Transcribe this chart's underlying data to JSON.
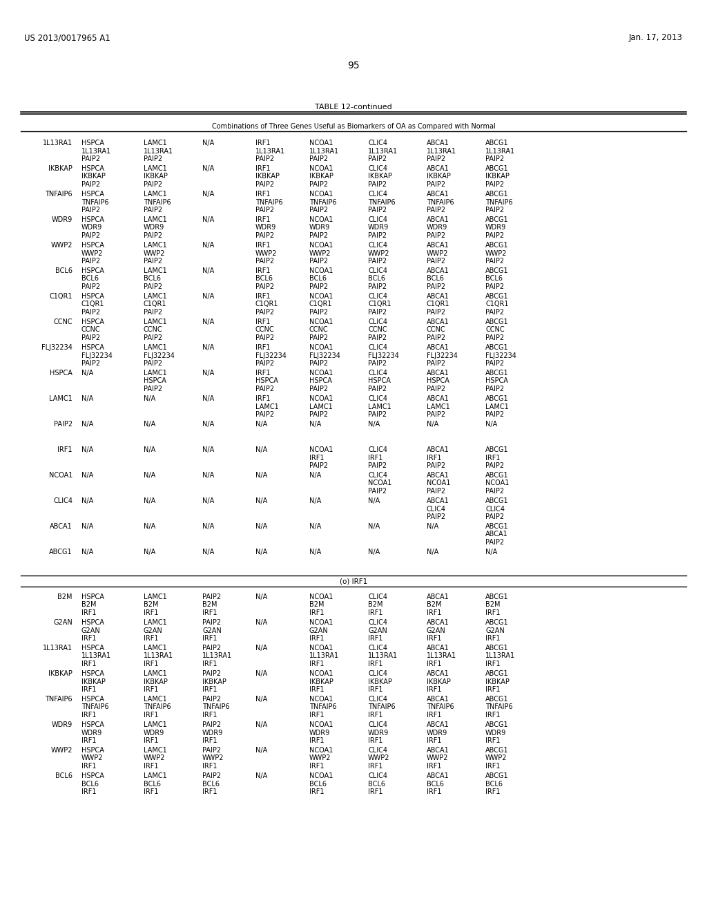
{
  "header_left": "US 2013/0017965 A1",
  "header_right": "Jan. 17, 2013",
  "page_number": "95",
  "table_title": "TABLE 12-continued",
  "subtitle": "Combinations of Three Genes Useful as Biomarkers of OA as Compared with Normal",
  "section_label_a": "(o) IRF1",
  "rows_section_a": [
    {
      "label": "1L13RA1",
      "cols": [
        "HSPCA",
        "LAMC1",
        "N/A",
        "IRF1",
        "NCOA1",
        "CLIC4",
        "ABCA1",
        "ABCG1"
      ],
      "sub1": [
        "1L13RA1",
        "1L13RA1",
        "",
        "1L13RA1",
        "1L13RA1",
        "1L13RA1",
        "1L13RA1",
        "1L13RA1"
      ],
      "sub2": [
        "PAIP2",
        "PAIP2",
        "",
        "PAIP2",
        "PAIP2",
        "PAIP2",
        "PAIP2",
        "PAIP2"
      ]
    },
    {
      "label": "IKBKAP",
      "cols": [
        "HSPCA",
        "LAMC1",
        "N/A",
        "IRF1",
        "NCOA1",
        "CLIC4",
        "ABCA1",
        "ABCG1"
      ],
      "sub1": [
        "IKBKAP",
        "IKBKAP",
        "",
        "IKBKAP",
        "IKBKAP",
        "IKBKAP",
        "IKBKAP",
        "IKBKAP"
      ],
      "sub2": [
        "PAIP2",
        "PAIP2",
        "",
        "PAIP2",
        "PAIP2",
        "PAIP2",
        "PAIP2",
        "PAIP2"
      ]
    },
    {
      "label": "TNFAIP6",
      "cols": [
        "HSPCA",
        "LAMC1",
        "N/A",
        "IRF1",
        "NCOA1",
        "CLIC4",
        "ABCA1",
        "ABCG1"
      ],
      "sub1": [
        "TNFAIP6",
        "TNFAIP6",
        "",
        "TNFAIP6",
        "TNFAIP6",
        "TNFAIP6",
        "TNFAIP6",
        "TNFAIP6"
      ],
      "sub2": [
        "PAIP2",
        "PAIP2",
        "",
        "PAIP2",
        "PAIP2",
        "PAIP2",
        "PAIP2",
        "PAIP2"
      ]
    },
    {
      "label": "WDR9",
      "cols": [
        "HSPCA",
        "LAMC1",
        "N/A",
        "IRF1",
        "NCOA1",
        "CLIC4",
        "ABCA1",
        "ABCG1"
      ],
      "sub1": [
        "WDR9",
        "WDR9",
        "",
        "WDR9",
        "WDR9",
        "WDR9",
        "WDR9",
        "WDR9"
      ],
      "sub2": [
        "PAIP2",
        "PAIP2",
        "",
        "PAIP2",
        "PAIP2",
        "PAIP2",
        "PAIP2",
        "PAIP2"
      ]
    },
    {
      "label": "WWP2",
      "cols": [
        "HSPCA",
        "LAMC1",
        "N/A",
        "IRF1",
        "NCOA1",
        "CLIC4",
        "ABCA1",
        "ABCG1"
      ],
      "sub1": [
        "WWP2",
        "WWP2",
        "",
        "WWP2",
        "WWP2",
        "WWP2",
        "WWP2",
        "WWP2"
      ],
      "sub2": [
        "PAIP2",
        "PAIP2",
        "",
        "PAIP2",
        "PAIP2",
        "PAIP2",
        "PAIP2",
        "PAIP2"
      ]
    },
    {
      "label": "BCL6",
      "cols": [
        "HSPCA",
        "LAMC1",
        "N/A",
        "IRF1",
        "NCOA1",
        "CLIC4",
        "ABCA1",
        "ABCG1"
      ],
      "sub1": [
        "BCL6",
        "BCL6",
        "",
        "BCL6",
        "BCL6",
        "BCL6",
        "BCL6",
        "BCL6"
      ],
      "sub2": [
        "PAIP2",
        "PAIP2",
        "",
        "PAIP2",
        "PAIP2",
        "PAIP2",
        "PAIP2",
        "PAIP2"
      ]
    },
    {
      "label": "C1QR1",
      "cols": [
        "HSPCA",
        "LAMC1",
        "N/A",
        "IRF1",
        "NCOA1",
        "CLIC4",
        "ABCA1",
        "ABCG1"
      ],
      "sub1": [
        "C1QR1",
        "C1QR1",
        "",
        "C1QR1",
        "C1QR1",
        "C1QR1",
        "C1QR1",
        "C1QR1"
      ],
      "sub2": [
        "PAIP2",
        "PAIP2",
        "",
        "PAIP2",
        "PAIP2",
        "PAIP2",
        "PAIP2",
        "PAIP2"
      ]
    },
    {
      "label": "CCNC",
      "cols": [
        "HSPCA",
        "LAMC1",
        "N/A",
        "IRF1",
        "NCOA1",
        "CLIC4",
        "ABCA1",
        "ABCG1"
      ],
      "sub1": [
        "CCNC",
        "CCNC",
        "",
        "CCNC",
        "CCNC",
        "CCNC",
        "CCNC",
        "CCNC"
      ],
      "sub2": [
        "PAIP2",
        "PAIP2",
        "",
        "PAIP2",
        "PAIP2",
        "PAIP2",
        "PAIP2",
        "PAIP2"
      ]
    },
    {
      "label": "FLJ32234",
      "cols": [
        "HSPCA",
        "LAMC1",
        "N/A",
        "IRF1",
        "NCOA1",
        "CLIC4",
        "ABCA1",
        "ABCG1"
      ],
      "sub1": [
        "FLJ32234",
        "FLJ32234",
        "",
        "FLJ32234",
        "FLJ32234",
        "FLJ32234",
        "FLJ32234",
        "FLJ32234"
      ],
      "sub2": [
        "PAIP2",
        "PAIP2",
        "",
        "PAIP2",
        "PAIP2",
        "PAIP2",
        "PAIP2",
        "PAIP2"
      ]
    },
    {
      "label": "HSPCA",
      "cols": [
        "N/A",
        "LAMC1",
        "N/A",
        "IRF1",
        "NCOA1",
        "CLIC4",
        "ABCA1",
        "ABCG1"
      ],
      "sub1": [
        "",
        "HSPCA",
        "",
        "HSPCA",
        "HSPCA",
        "HSPCA",
        "HSPCA",
        "HSPCA"
      ],
      "sub2": [
        "",
        "PAIP2",
        "",
        "PAIP2",
        "PAIP2",
        "PAIP2",
        "PAIP2",
        "PAIP2"
      ]
    },
    {
      "label": "LAMC1",
      "cols": [
        "N/A",
        "N/A",
        "N/A",
        "IRF1",
        "NCOA1",
        "CLIC4",
        "ABCA1",
        "ABCG1"
      ],
      "sub1": [
        "",
        "",
        "",
        "LAMC1",
        "LAMC1",
        "LAMC1",
        "LAMC1",
        "LAMC1"
      ],
      "sub2": [
        "",
        "",
        "",
        "PAIP2",
        "PAIP2",
        "PAIP2",
        "PAIP2",
        "PAIP2"
      ]
    },
    {
      "label": "PAIP2",
      "cols": [
        "N/A",
        "N/A",
        "N/A",
        "N/A",
        "N/A",
        "N/A",
        "N/A",
        "N/A"
      ],
      "sub1": [
        "",
        "",
        "",
        "",
        "",
        "",
        "",
        ""
      ],
      "sub2": [
        "",
        "",
        "",
        "",
        "",
        "",
        "",
        ""
      ]
    },
    {
      "label": "IRF1",
      "cols": [
        "N/A",
        "N/A",
        "N/A",
        "N/A",
        "NCOA1",
        "CLIC4",
        "ABCA1",
        "ABCG1"
      ],
      "sub1": [
        "",
        "",
        "",
        "",
        "IRF1",
        "IRF1",
        "IRF1",
        "IRF1"
      ],
      "sub2": [
        "",
        "",
        "",
        "",
        "PAIP2",
        "PAIP2",
        "PAIP2",
        "PAIP2"
      ]
    },
    {
      "label": "NCOA1",
      "cols": [
        "N/A",
        "N/A",
        "N/A",
        "N/A",
        "N/A",
        "CLIC4",
        "ABCA1",
        "ABCG1"
      ],
      "sub1": [
        "",
        "",
        "",
        "",
        "",
        "NCOA1",
        "NCOA1",
        "NCOA1"
      ],
      "sub2": [
        "",
        "",
        "",
        "",
        "",
        "PAIP2",
        "PAIP2",
        "PAIP2"
      ]
    },
    {
      "label": "CLIC4",
      "cols": [
        "N/A",
        "N/A",
        "N/A",
        "N/A",
        "N/A",
        "N/A",
        "ABCA1",
        "ABCG1"
      ],
      "sub1": [
        "",
        "",
        "",
        "",
        "",
        "",
        "CLIC4",
        "CLIC4"
      ],
      "sub2": [
        "",
        "",
        "",
        "",
        "",
        "",
        "PAIP2",
        "PAIP2"
      ]
    },
    {
      "label": "ABCA1",
      "cols": [
        "N/A",
        "N/A",
        "N/A",
        "N/A",
        "N/A",
        "N/A",
        "N/A",
        "ABCG1"
      ],
      "sub1": [
        "",
        "",
        "",
        "",
        "",
        "",
        "",
        "ABCA1"
      ],
      "sub2": [
        "",
        "",
        "",
        "",
        "",
        "",
        "",
        "PAIP2"
      ]
    },
    {
      "label": "ABCG1",
      "cols": [
        "N/A",
        "N/A",
        "N/A",
        "N/A",
        "N/A",
        "N/A",
        "N/A",
        "N/A"
      ],
      "sub1": [
        "",
        "",
        "",
        "",
        "",
        "",
        "",
        ""
      ],
      "sub2": [
        "",
        "",
        "",
        "",
        "",
        "",
        "",
        ""
      ]
    }
  ],
  "rows_section_b": [
    {
      "label": "B2M",
      "cols": [
        "HSPCA",
        "LAMC1",
        "PAIP2",
        "N/A",
        "NCOA1",
        "CLIC4",
        "ABCA1",
        "ABCG1"
      ],
      "sub1": [
        "B2M",
        "B2M",
        "B2M",
        "",
        "B2M",
        "B2M",
        "B2M",
        "B2M"
      ],
      "sub2": [
        "IRF1",
        "IRF1",
        "IRF1",
        "",
        "IRF1",
        "IRF1",
        "IRF1",
        "IRF1"
      ]
    },
    {
      "label": "G2AN",
      "cols": [
        "HSPCA",
        "LAMC1",
        "PAIP2",
        "N/A",
        "NCOA1",
        "CLIC4",
        "ABCA1",
        "ABCG1"
      ],
      "sub1": [
        "G2AN",
        "G2AN",
        "G2AN",
        "",
        "G2AN",
        "G2AN",
        "G2AN",
        "G2AN"
      ],
      "sub2": [
        "IRF1",
        "IRF1",
        "IRF1",
        "",
        "IRF1",
        "IRF1",
        "IRF1",
        "IRF1"
      ]
    },
    {
      "label": "1L13RA1",
      "cols": [
        "HSPCA",
        "LAMC1",
        "PAIP2",
        "N/A",
        "NCOA1",
        "CLIC4",
        "ABCA1",
        "ABCG1"
      ],
      "sub1": [
        "1L13RA1",
        "1L13RA1",
        "1L13RA1",
        "",
        "1L13RA1",
        "1L13RA1",
        "1L13RA1",
        "1L13RA1"
      ],
      "sub2": [
        "IRF1",
        "IRF1",
        "IRF1",
        "",
        "IRF1",
        "IRF1",
        "IRF1",
        "IRF1"
      ]
    },
    {
      "label": "IKBKAP",
      "cols": [
        "HSPCA",
        "LAMC1",
        "PAIP2",
        "N/A",
        "NCOA1",
        "CLIC4",
        "ABCA1",
        "ABCG1"
      ],
      "sub1": [
        "IKBKAP",
        "IKBKAP",
        "IKBKAP",
        "",
        "IKBKAP",
        "IKBKAP",
        "IKBKAP",
        "IKBKAP"
      ],
      "sub2": [
        "IRF1",
        "IRF1",
        "IRF1",
        "",
        "IRF1",
        "IRF1",
        "IRF1",
        "IRF1"
      ]
    },
    {
      "label": "TNFAIP6",
      "cols": [
        "HSPCA",
        "LAMC1",
        "PAIP2",
        "N/A",
        "NCOA1",
        "CLIC4",
        "ABCA1",
        "ABCG1"
      ],
      "sub1": [
        "TNFAIP6",
        "TNFAIP6",
        "TNFAIP6",
        "",
        "TNFAIP6",
        "TNFAIP6",
        "TNFAIP6",
        "TNFAIP6"
      ],
      "sub2": [
        "IRF1",
        "IRF1",
        "IRF1",
        "",
        "IRF1",
        "IRF1",
        "IRF1",
        "IRF1"
      ]
    },
    {
      "label": "WDR9",
      "cols": [
        "HSPCA",
        "LAMC1",
        "PAIP2",
        "N/A",
        "NCOA1",
        "CLIC4",
        "ABCA1",
        "ABCG1"
      ],
      "sub1": [
        "WDR9",
        "WDR9",
        "WDR9",
        "",
        "WDR9",
        "WDR9",
        "WDR9",
        "WDR9"
      ],
      "sub2": [
        "IRF1",
        "IRF1",
        "IRF1",
        "",
        "IRF1",
        "IRF1",
        "IRF1",
        "IRF1"
      ]
    },
    {
      "label": "WWP2",
      "cols": [
        "HSPCA",
        "LAMC1",
        "PAIP2",
        "N/A",
        "NCOA1",
        "CLIC4",
        "ABCA1",
        "ABCG1"
      ],
      "sub1": [
        "WWP2",
        "WWP2",
        "WWP2",
        "",
        "WWP2",
        "WWP2",
        "WWP2",
        "WWP2"
      ],
      "sub2": [
        "IRF1",
        "IRF1",
        "IRF1",
        "",
        "IRF1",
        "IRF1",
        "IRF1",
        "IRF1"
      ]
    },
    {
      "label": "BCL6",
      "cols": [
        "HSPCA",
        "LAMC1",
        "PAIP2",
        "N/A",
        "NCOA1",
        "CLIC4",
        "ABCA1",
        "ABCG1"
      ],
      "sub1": [
        "BCL6",
        "BCL6",
        "BCL6",
        "",
        "BCL6",
        "BCL6",
        "BCL6",
        "BCL6"
      ],
      "sub2": [
        "IRF1",
        "IRF1",
        "IRF1",
        "",
        "IRF1",
        "IRF1",
        "IRF1",
        "IRF1"
      ]
    }
  ],
  "bg_color": "#ffffff",
  "text_color": "#000000"
}
